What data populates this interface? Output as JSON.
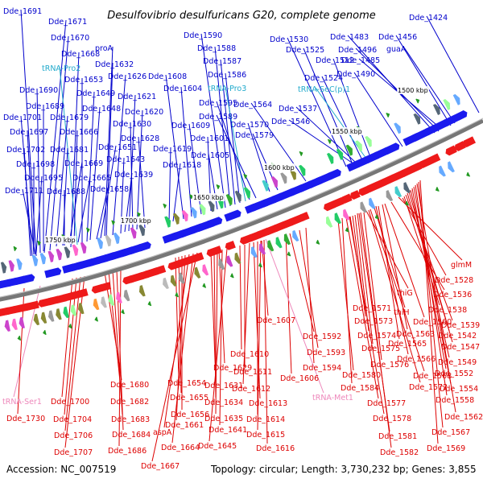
{
  "title": "Desulfovibrio desulfuricans G20, complete genome",
  "footer": {
    "accession": "Accession: NC_007519",
    "summary": "Topology: circular; Length: 3,730,232 bp; Genes: 3,855"
  },
  "colors": {
    "forward_label": "#0000cc",
    "reverse_label": "#dd0000",
    "trna_forward": "#22aacc",
    "trna_reverse": "#ee88bb",
    "backbone": "#777777",
    "forward_gene": "#1a1aee",
    "reverse_gene": "#ee1a1a",
    "feature_green": "#229922"
  },
  "ticks": [
    "1500 kbp",
    "1550 kbp",
    "1600 kbp",
    "1650 kbp",
    "1700 kbp",
    "1750 kbp"
  ],
  "forward_labels": [
    "Dde_1691",
    "Dde_1671",
    "Dde_1670",
    "Dde_1668",
    "tRNA-Pro2",
    "Dde_1653",
    "Dde_1632",
    "proA",
    "Dde_1626",
    "Dde_1690",
    "Dde_1649",
    "Dde_1621",
    "Dde_1689",
    "Dde_1648",
    "Dde_1620",
    "Dde_1701",
    "Dde_1679",
    "Dde_1630",
    "Dde_1697",
    "Dde_1666",
    "Dde_1628",
    "Dde_1702",
    "Dde_1681",
    "Dde_1651",
    "Dde_1619",
    "Dde_1698",
    "Dde_1669",
    "Dde_1643",
    "Dde_1618",
    "Dde_1695",
    "Dde_1665",
    "Dde_1639",
    "Dde_1711",
    "Dde_1688",
    "Dde_1658",
    "Dde_1590",
    "Dde_1588",
    "Dde_1587",
    "Dde_1586",
    "Dde_1608",
    "Dde_1604",
    "tRNA-Pro3",
    "Dde_1609",
    "Dde_1595",
    "Dde_1589",
    "Dde_1564",
    "Dde_1601",
    "Dde_1570",
    "Dde_1579",
    "Dde_1605",
    "Dde_1530",
    "Dde_1525",
    "Dde_1512",
    "Dde_1524",
    "tRNA-SeC(p)1",
    "Dde_1537",
    "Dde_1546",
    "Dde_1483",
    "Dde_1496",
    "Dde_1485",
    "Dde_1490",
    "Dde_1456",
    "guaA",
    "Dde_1424"
  ],
  "reverse_labels": [
    "glmM",
    "Dde_1528",
    "Dde_1536",
    "thiG",
    "Dde_1538",
    "Dde_1571",
    "thiH",
    "Dde_1539",
    "Dde_1573",
    "Dde_1560",
    "Dde_1542",
    "Dde_1607",
    "Dde_1563",
    "Dde_1592",
    "Dde_1574",
    "Dde_1547",
    "Dde_1565",
    "Dde_1593",
    "Dde_1575",
    "Dde_1566",
    "Dde_1549",
    "Dde_1610",
    "Dde_1576",
    "Dde_1552",
    "Dde_1594",
    "Dde_1568",
    "Dde_1611",
    "Dde_1580",
    "Dde_1629",
    "Dde_1572",
    "Dde_1554",
    "Dde_1606",
    "Dde_1584",
    "Dde_1558",
    "Dde_1612",
    "Dde_1654",
    "tRNA-Met1",
    "Dde_1631",
    "Dde_1680",
    "Dde_1577",
    "Dde_1613",
    "Dde_1655",
    "Dde_1562",
    "Dde_1634",
    "Dde_1700",
    "Dde_1682",
    "Dde_1656",
    "Dde_1578",
    "tRNA-Ser1",
    "Dde_1567",
    "Dde_1635",
    "Dde_1614",
    "Dde_1730",
    "Dde_1704",
    "Dde_1683",
    "Dde_1661",
    "Dde_1641",
    "Dde_1581",
    "Dde_1615",
    "Dde_1684",
    "aspA",
    "Dde_1569",
    "Dde_1582",
    "Dde_1706",
    "Dde_1664",
    "Dde_1645",
    "Dde_1616",
    "Dde_1707",
    "Dde_1686",
    "Dde_1667"
  ]
}
